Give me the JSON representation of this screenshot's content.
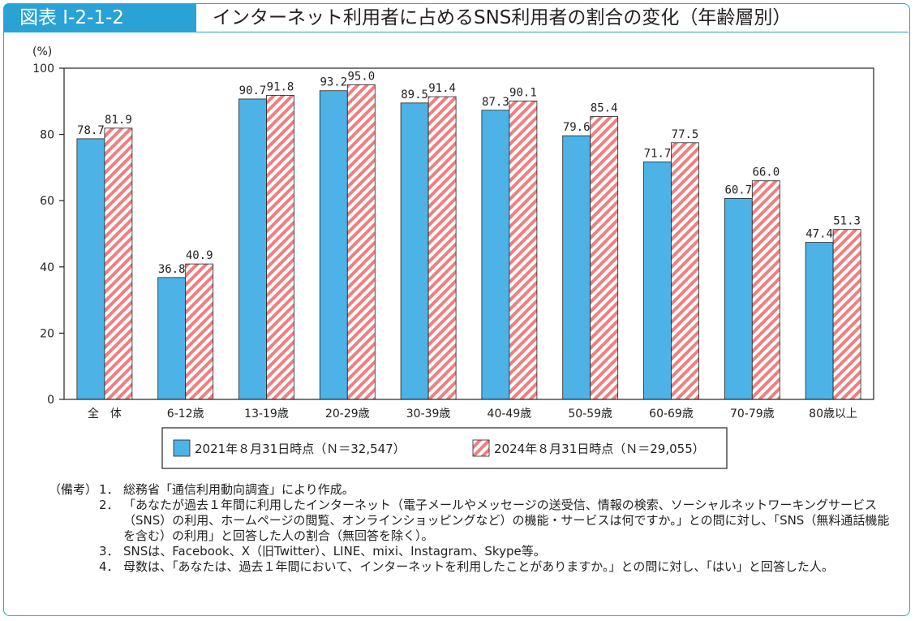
{
  "header": {
    "figure_label": "図表 I-2-1-2",
    "title": "インターネット利用者に占めるSNS利用者の割合の変化（年齢層別）"
  },
  "colors": {
    "accent": "#29a3d6",
    "series_2021": "#4db3e6",
    "series_2024_stripe": "#f07f7f"
  },
  "chart_data": {
    "type": "bar",
    "ylabel": "(%)",
    "ylim": [
      0,
      100
    ],
    "yticks": [
      0,
      20,
      40,
      60,
      80,
      100
    ],
    "categories": [
      "全　体",
      "6-12歳",
      "13-19歳",
      "20-29歳",
      "30-39歳",
      "40-49歳",
      "50-59歳",
      "60-69歳",
      "70-79歳",
      "80歳以上"
    ],
    "series": [
      {
        "name": "2021年８月31日時点（Ｎ＝32,547）",
        "values": [
          78.7,
          36.8,
          90.7,
          93.2,
          89.5,
          87.3,
          79.6,
          71.7,
          60.7,
          47.4
        ]
      },
      {
        "name": "2024年８月31日時点（Ｎ＝29,055）",
        "values": [
          81.9,
          40.9,
          91.8,
          95.0,
          91.4,
          90.1,
          85.4,
          77.5,
          66.0,
          51.3
        ]
      }
    ],
    "data_labels": [
      [
        "78.7",
        "36.8",
        "90.7",
        "93.2",
        "89.5",
        "87.3",
        "79.6",
        "71.7",
        "60.7",
        "47.4"
      ],
      [
        "81.9",
        "40.9",
        "91.8",
        "95.0",
        "91.4",
        "90.1",
        "85.4",
        "77.5",
        "66.0",
        "51.3"
      ]
    ],
    "legend_position": "bottom"
  },
  "notes": {
    "prefix": "（備考）",
    "items": [
      {
        "num": "1．",
        "text": "総務省「通信利用動向調査」により作成。"
      },
      {
        "num": "2．",
        "text": "「あなたが過去１年間に利用したインターネット（電子メールやメッセージの送受信、情報の検索、ソーシャルネットワーキングサービス（SNS）の利用、ホームページの閲覧、オンラインショッピングなど）の機能・サービスは何ですか。」との問に対し、「SNS（無料通話機能を含む）の利用」と回答した人の割合（無回答を除く）。"
      },
      {
        "num": "3．",
        "text": "SNSは、Facebook、X（旧Twitter）、LINE、mixi、Instagram、Skype等。"
      },
      {
        "num": "4．",
        "text": "母数は、「あなたは、過去１年間において、インターネットを利用したことがありますか。」との問に対し、「はい」と回答した人。"
      }
    ]
  }
}
